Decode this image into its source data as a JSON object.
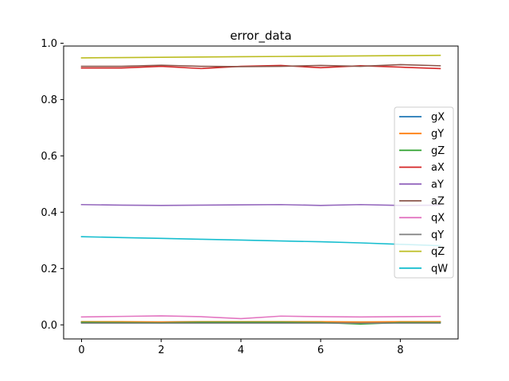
{
  "chart_data": {
    "type": "line",
    "title": "error_data",
    "xlabel": "",
    "ylabel": "",
    "xlim": [
      -0.45,
      9.45
    ],
    "ylim": [
      -0.05,
      0.99
    ],
    "xticks": [
      0,
      2,
      4,
      6,
      8
    ],
    "xtick_labels": [
      "0",
      "2",
      "4",
      "6",
      "8"
    ],
    "yticks": [
      0.0,
      0.2,
      0.4,
      0.6,
      0.8,
      1.0
    ],
    "ytick_labels": [
      "0.0",
      "0.2",
      "0.4",
      "0.6",
      "0.8",
      "1.0"
    ],
    "grid": false,
    "legend_position": "center-right",
    "x": [
      0,
      1,
      2,
      3,
      4,
      5,
      6,
      7,
      8,
      9
    ],
    "series": [
      {
        "name": "gX",
        "color": "#1f77b4",
        "values": [
          0.01,
          0.01,
          0.01,
          0.011,
          0.01,
          0.011,
          0.01,
          0.01,
          0.01,
          0.011
        ]
      },
      {
        "name": "gY",
        "color": "#ff7f0e",
        "values": [
          0.011,
          0.011,
          0.01,
          0.011,
          0.011,
          0.011,
          0.011,
          0.01,
          0.011,
          0.011
        ]
      },
      {
        "name": "gZ",
        "color": "#2ca02c",
        "values": [
          0.009,
          0.008,
          0.007,
          0.009,
          0.009,
          0.009,
          0.008,
          0.003,
          0.008,
          0.008
        ]
      },
      {
        "name": "aX",
        "color": "#d62728",
        "values": [
          0.912,
          0.912,
          0.918,
          0.91,
          0.918,
          0.921,
          0.913,
          0.92,
          0.915,
          0.91
        ]
      },
      {
        "name": "aY",
        "color": "#9467bd",
        "values": [
          0.427,
          0.425,
          0.424,
          0.425,
          0.426,
          0.427,
          0.424,
          0.427,
          0.424,
          0.425
        ]
      },
      {
        "name": "aZ",
        "color": "#8c564b",
        "values": [
          0.918,
          0.918,
          0.922,
          0.918,
          0.917,
          0.918,
          0.921,
          0.918,
          0.924,
          0.92
        ]
      },
      {
        "name": "qX",
        "color": "#e377c2",
        "values": [
          0.028,
          0.03,
          0.032,
          0.029,
          0.022,
          0.031,
          0.029,
          0.028,
          0.029,
          0.03
        ]
      },
      {
        "name": "qY",
        "color": "#7f7f7f",
        "values": [
          0.006,
          0.006,
          0.006,
          0.006,
          0.006,
          0.006,
          0.006,
          0.006,
          0.006,
          0.006
        ]
      },
      {
        "name": "qZ",
        "color": "#bcbd22",
        "values": [
          0.948,
          0.949,
          0.95,
          0.951,
          0.952,
          0.953,
          0.954,
          0.955,
          0.956,
          0.957
        ]
      },
      {
        "name": "qW",
        "color": "#17becf",
        "values": [
          0.313,
          0.31,
          0.307,
          0.304,
          0.301,
          0.298,
          0.295,
          0.291,
          0.286,
          0.281
        ]
      }
    ]
  }
}
